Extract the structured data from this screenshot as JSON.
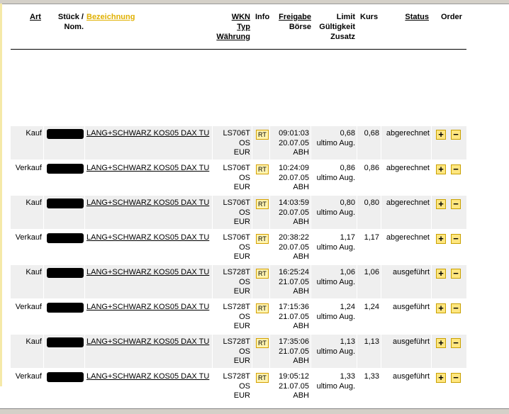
{
  "header": {
    "art": "Art",
    "stueck": "Stück /",
    "nom": "Nom.",
    "bezeichnung": "Bezeichnung",
    "wkn": "WKN",
    "typ": "Typ",
    "waehrung": "Währung",
    "info": "Info",
    "freigabe": "Freigabe",
    "boerse": "Börse",
    "limit": "Limit",
    "gueltigkeit": "Gültigkeit",
    "zusatz": "Zusatz",
    "kurs": "Kurs",
    "status": "Status",
    "order": "Order"
  },
  "colors": {
    "accent": "#e0b000",
    "row_alt": "#efefef"
  },
  "rows": [
    {
      "art": "Kauf",
      "name": "LANG+SCHWARZ KOS05 DAX TU",
      "wkn": "LS706T",
      "typ": "OS",
      "cur": "EUR",
      "info": "RT",
      "time": "09:01:03",
      "date": "20.07.05",
      "boerse": "ABH",
      "limit": "0,68",
      "valid": "ultimo Aug.",
      "kurs": "0,68",
      "status": "abgerechnet"
    },
    {
      "art": "Verkauf",
      "name": "LANG+SCHWARZ KOS05 DAX TU",
      "wkn": "LS706T",
      "typ": "OS",
      "cur": "EUR",
      "info": "RT",
      "time": "10:24:09",
      "date": "20.07.05",
      "boerse": "ABH",
      "limit": "0,86",
      "valid": "ultimo Aug.",
      "kurs": "0,86",
      "status": "abgerechnet"
    },
    {
      "art": "Kauf",
      "name": "LANG+SCHWARZ KOS05 DAX TU",
      "wkn": "LS706T",
      "typ": "OS",
      "cur": "EUR",
      "info": "RT",
      "time": "14:03:59",
      "date": "20.07.05",
      "boerse": "ABH",
      "limit": "0,80",
      "valid": "ultimo Aug.",
      "kurs": "0,80",
      "status": "abgerechnet"
    },
    {
      "art": "Verkauf",
      "name": "LANG+SCHWARZ KOS05 DAX TU",
      "wkn": "LS706T",
      "typ": "OS",
      "cur": "EUR",
      "info": "RT",
      "time": "20:38:22",
      "date": "20.07.05",
      "boerse": "ABH",
      "limit": "1,17",
      "valid": "ultimo Aug.",
      "kurs": "1,17",
      "status": "abgerechnet"
    },
    {
      "art": "Kauf",
      "name": "LANG+SCHWARZ KOS05 DAX TU",
      "wkn": "LS728T",
      "typ": "OS",
      "cur": "EUR",
      "info": "RT",
      "time": "16:25:24",
      "date": "21.07.05",
      "boerse": "ABH",
      "limit": "1,06",
      "valid": "ultimo Aug.",
      "kurs": "1,06",
      "status": "ausgeführt"
    },
    {
      "art": "Verkauf",
      "name": "LANG+SCHWARZ KOS05 DAX TU",
      "wkn": "LS728T",
      "typ": "OS",
      "cur": "EUR",
      "info": "RT",
      "time": "17:15:36",
      "date": "21.07.05",
      "boerse": "ABH",
      "limit": "1,24",
      "valid": "ultimo Aug.",
      "kurs": "1,24",
      "status": "ausgeführt"
    },
    {
      "art": "Kauf",
      "name": "LANG+SCHWARZ KOS05 DAX TU",
      "wkn": "LS728T",
      "typ": "OS",
      "cur": "EUR",
      "info": "RT",
      "time": "17:35:06",
      "date": "21.07.05",
      "boerse": "ABH",
      "limit": "1,13",
      "valid": "ultimo Aug.",
      "kurs": "1,13",
      "status": "ausgeführt"
    },
    {
      "art": "Verkauf",
      "name": "LANG+SCHWARZ KOS05 DAX TU",
      "wkn": "LS728T",
      "typ": "OS",
      "cur": "EUR",
      "info": "RT",
      "time": "19:05:12",
      "date": "21.07.05",
      "boerse": "ABH",
      "limit": "1,33",
      "valid": "ultimo Aug.",
      "kurs": "1,33",
      "status": "ausgeführt"
    }
  ],
  "icons": {
    "plus": "plus-icon",
    "minus": "minus-icon"
  }
}
